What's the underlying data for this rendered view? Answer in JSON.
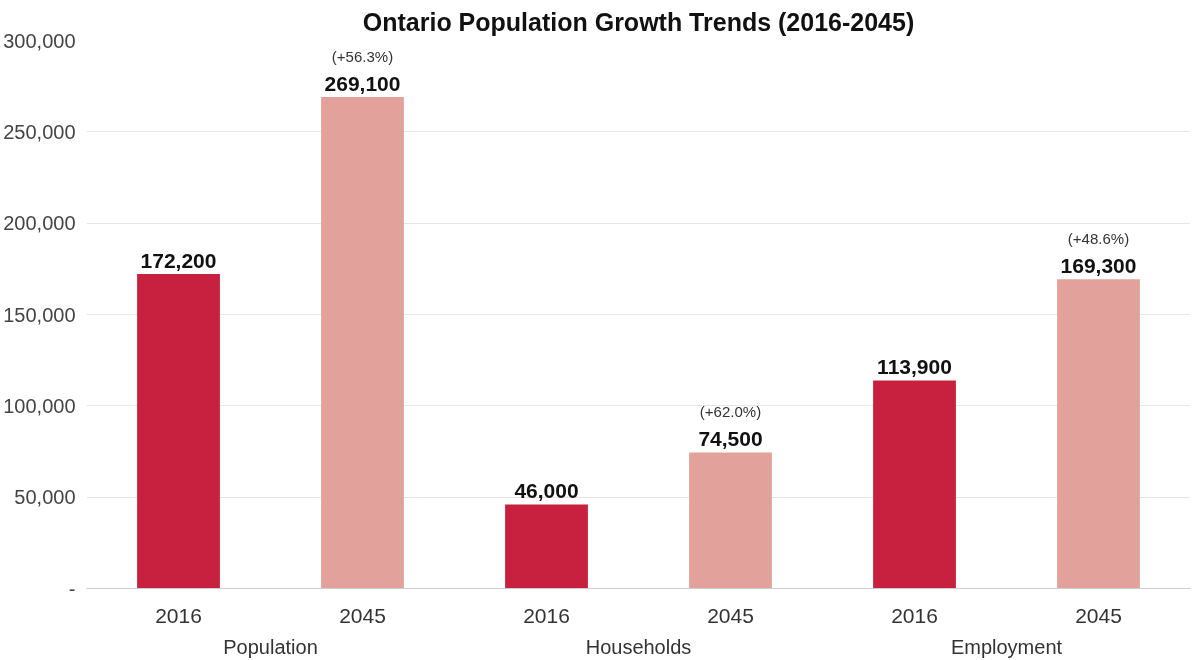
{
  "chart_data": {
    "type": "bar",
    "title": "Ontario Population Growth Trends (2016-2045)",
    "categories": [
      "2016",
      "2045",
      "2016",
      "2045",
      "2016",
      "2045"
    ],
    "values": [
      172200,
      269100,
      46000,
      74500,
      113900,
      169300
    ],
    "colors": [
      "#c8203f",
      "#e3a19c",
      "#c8203f",
      "#e3a19c",
      "#c8203f",
      "#e3a19c"
    ],
    "value_labels": [
      "172,200",
      "(+56.3%)\n269,100",
      "46,000",
      "(+62.0%)\n74,500",
      "113,900",
      "(+48.6%)\n169,300"
    ],
    "annotations": [
      "Population",
      "Households",
      "Employment"
    ],
    "ylim": [
      0,
      300000
    ],
    "yticks": [
      {
        "value": 0,
        "label": "-"
      },
      {
        "value": 50000,
        "label": "50,000"
      },
      {
        "value": 100000,
        "label": "100,000"
      },
      {
        "value": 150000,
        "label": "150,000"
      },
      {
        "value": 200000,
        "label": "200,000"
      },
      {
        "value": 250000,
        "label": "250,000"
      },
      {
        "value": 300000,
        "label": "300,000"
      }
    ],
    "grid": "y"
  }
}
